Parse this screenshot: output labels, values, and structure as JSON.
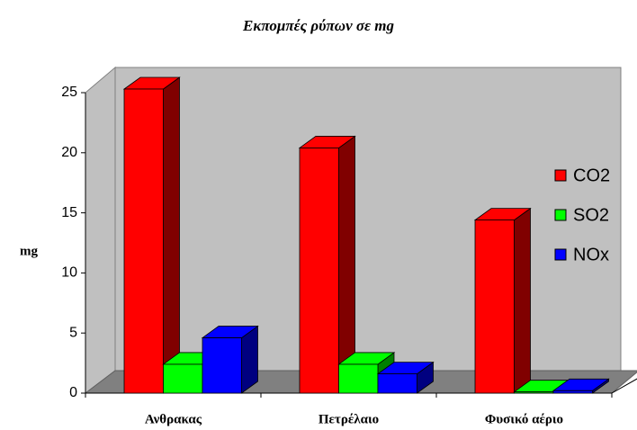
{
  "chart_data": {
    "type": "bar",
    "title": "Εκπομπές ρύπων σε mg",
    "y_label": "mg",
    "categories": [
      "Ανθρακας",
      "Πετρέλαιο",
      "Φυσικό αέριο"
    ],
    "series": [
      {
        "name": "CO2",
        "color": "#ff0000",
        "values": [
          25.3,
          20.4,
          14.4
        ]
      },
      {
        "name": "SO2",
        "color": "#00ff00",
        "values": [
          2.4,
          2.4,
          0.1
        ]
      },
      {
        "name": "NOx",
        "color": "#0000ff",
        "values": [
          4.6,
          1.6,
          0.2
        ]
      }
    ],
    "ylim": [
      0,
      25
    ],
    "yticks": [
      0,
      5,
      10,
      15,
      20,
      25
    ],
    "grid": false,
    "legend": "right"
  }
}
